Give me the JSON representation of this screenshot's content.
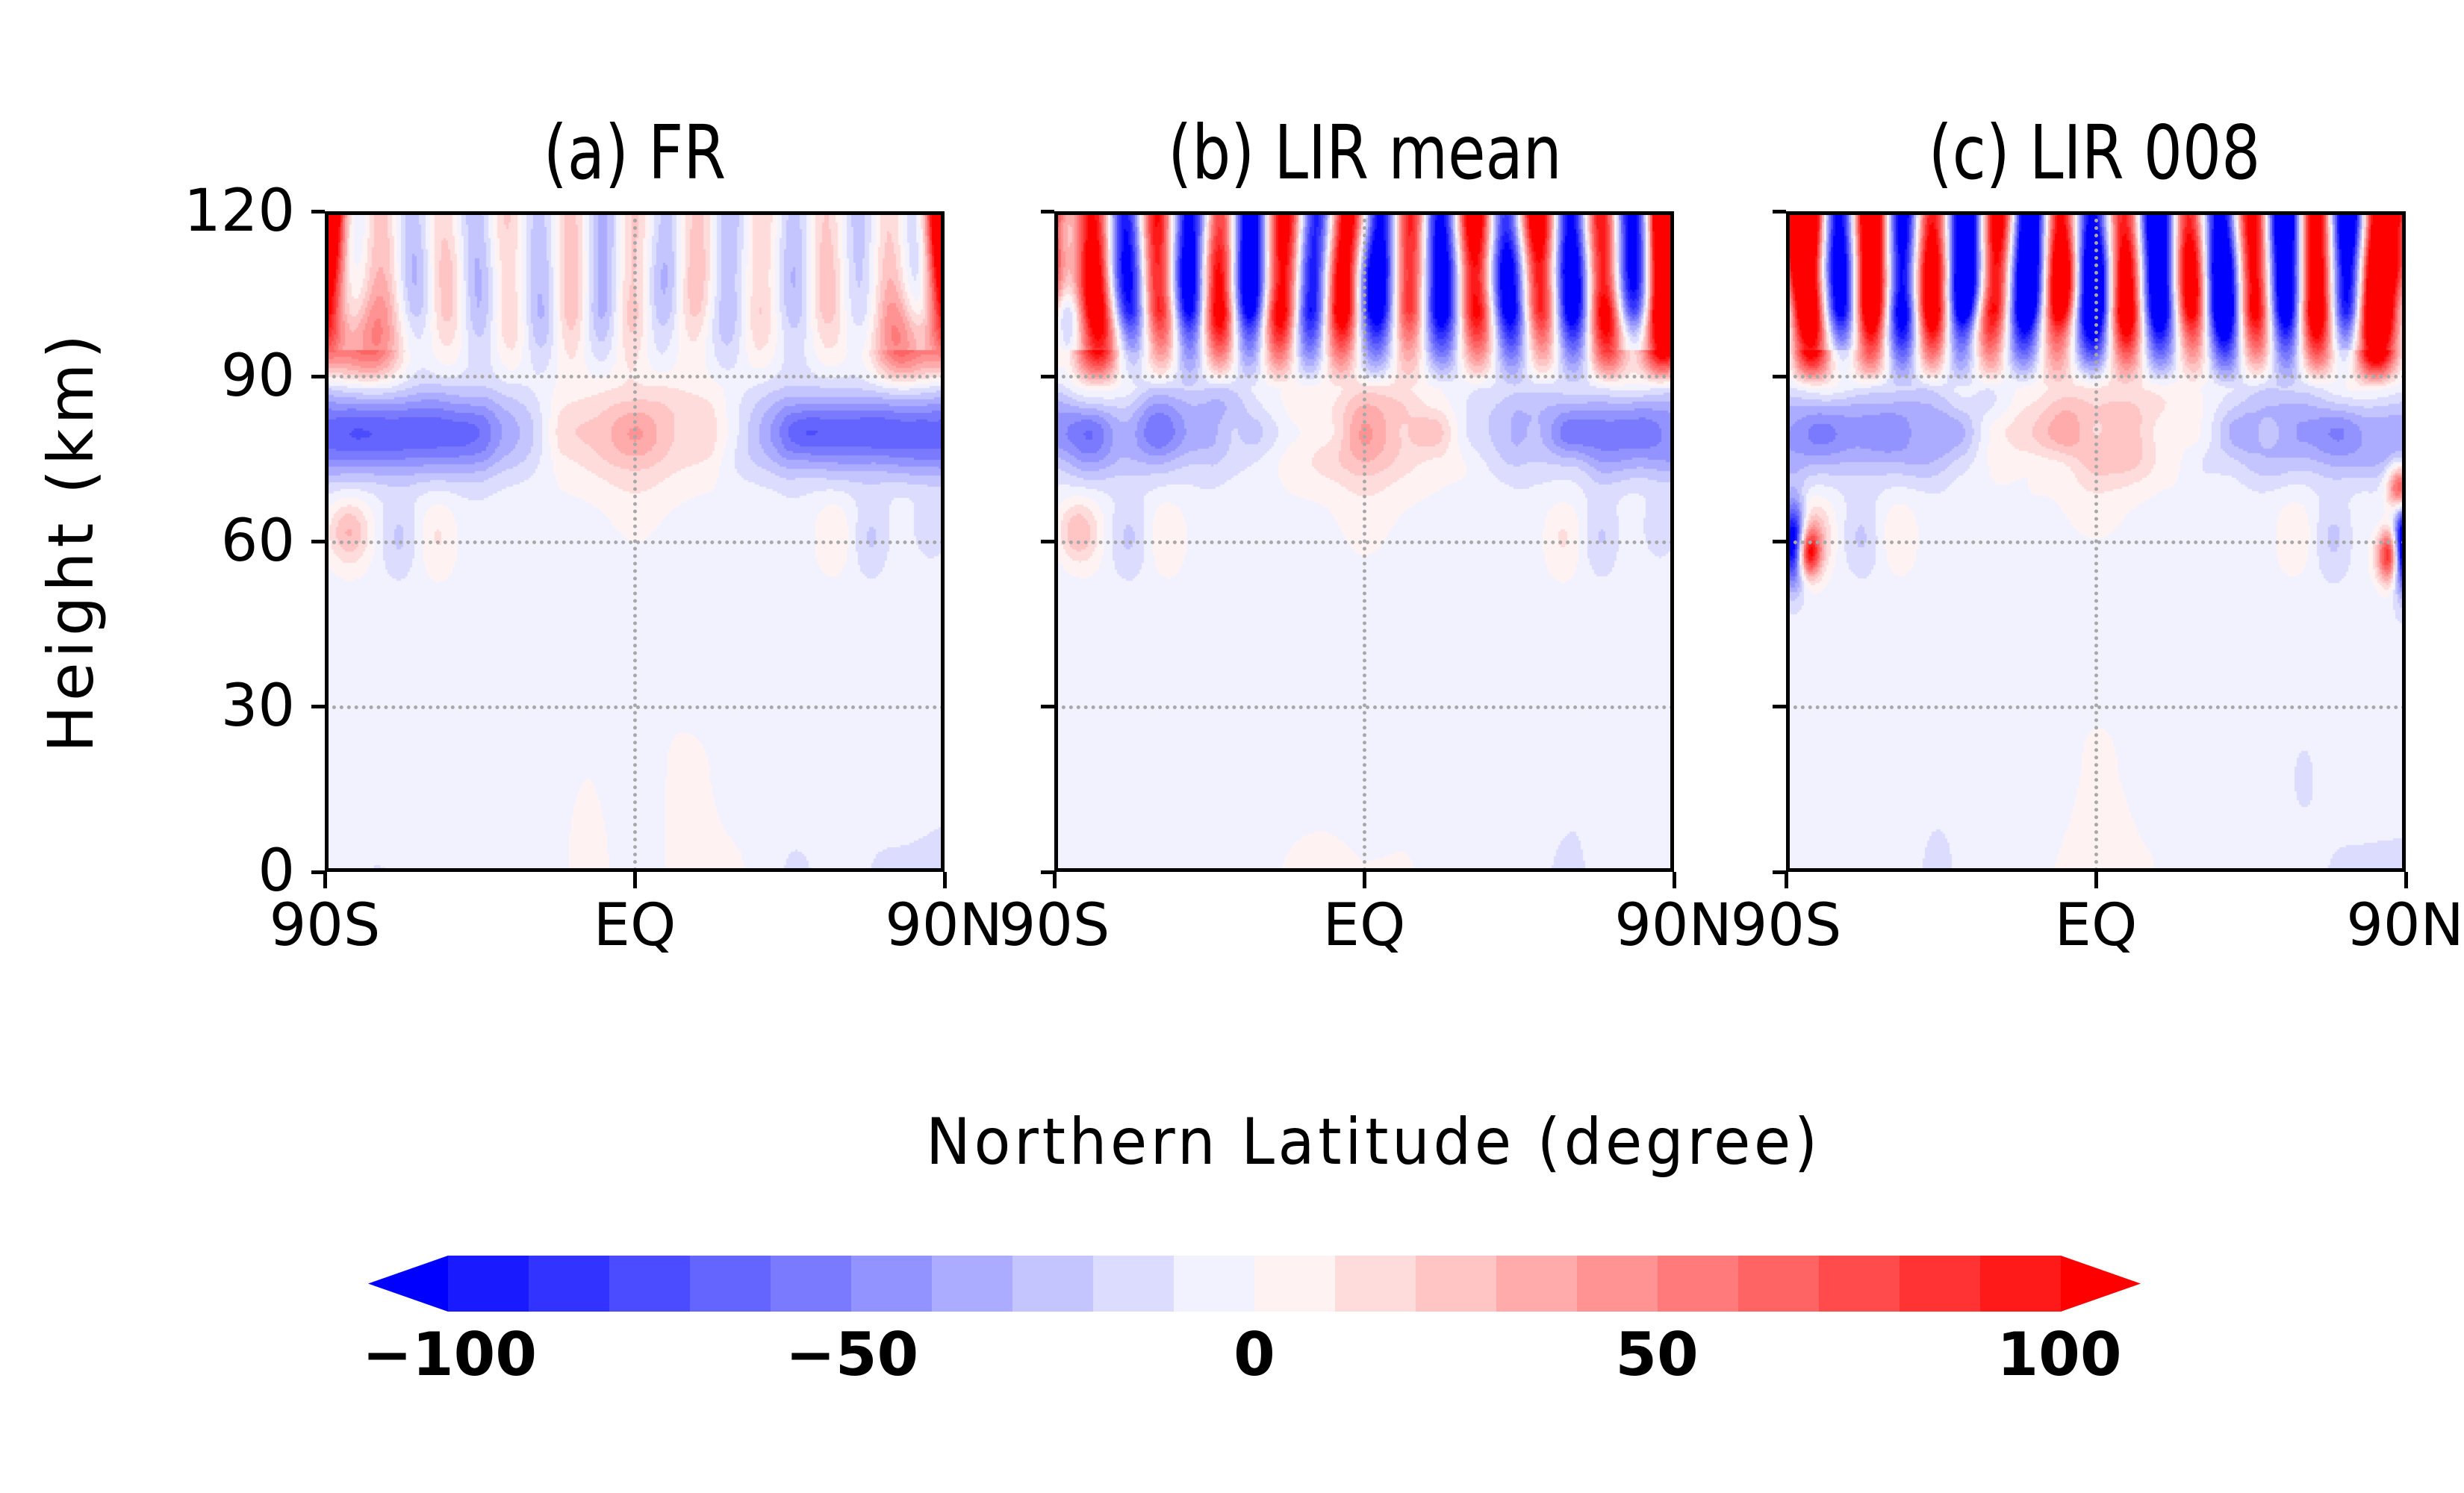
{
  "chart_data": [
    {
      "type": "heatmap",
      "title": "(a) FR",
      "xlabel": "Northern Latitude (degree)",
      "ylabel": "Height (km)",
      "xlim": [
        -90,
        90
      ],
      "ylim": [
        0,
        120
      ],
      "xticks": [
        "90S",
        "EQ",
        "90N"
      ],
      "yticks": [
        "0",
        "30",
        "60",
        "90",
        "120"
      ],
      "grid": true,
      "features": {
        "polar_upper_max": 100,
        "mesopause_band_height_km": 80,
        "mesopause_band_extratropics": -70,
        "mesopause_band_equator": 35,
        "upper_wave_amplitude": 25,
        "lower_level_amplitude": 8
      }
    },
    {
      "type": "heatmap",
      "title": "(b) LIR mean",
      "xlabel": "Northern Latitude (degree)",
      "ylabel": "Height (km)",
      "xlim": [
        -90,
        90
      ],
      "ylim": [
        0,
        120
      ],
      "xticks": [
        "90S",
        "EQ",
        "90N"
      ],
      "yticks": [
        "0",
        "30",
        "60",
        "90",
        "120"
      ],
      "grid": true,
      "features": {
        "polar_upper_max": 100,
        "mesopause_band_height_km": 80,
        "mesopause_band_extratropics": -50,
        "mesopause_band_equator": 30,
        "upper_wave_amplitude": 110,
        "lower_level_amplitude": 8
      }
    },
    {
      "type": "heatmap",
      "title": "(c) LIR 008",
      "xlabel": "Northern Latitude (degree)",
      "ylabel": "Height (km)",
      "xlim": [
        -90,
        90
      ],
      "ylim": [
        0,
        120
      ],
      "xticks": [
        "90S",
        "EQ",
        "90N"
      ],
      "yticks": [
        "0",
        "30",
        "60",
        "90",
        "120"
      ],
      "grid": true,
      "features": {
        "polar_upper_max": 100,
        "mesopause_band_height_km": 80,
        "mesopause_band_extratropics": -40,
        "mesopause_band_equator": 30,
        "upper_wave_amplitude": 130,
        "lower_level_amplitude": 10,
        "polar_60km_extremes": 110
      }
    }
  ],
  "figure": {
    "panel_titles": [
      "(a) FR",
      "(b) LIR mean",
      "(c) LIR 008"
    ],
    "ylabel": "Height (km)",
    "xlabel": "Northern Latitude (degree)",
    "yticks": [
      "120",
      "90",
      "60",
      "30",
      "0"
    ],
    "xticks": [
      "90S",
      "EQ",
      "90N"
    ]
  },
  "colorbar": {
    "min": -100,
    "max": 100,
    "step": 10,
    "extend": "both",
    "tick_labels": [
      "−100",
      "−50",
      "0",
      "50",
      "100"
    ],
    "colors": [
      "#1a1aff",
      "#3333ff",
      "#4b4bff",
      "#6464ff",
      "#7a7aff",
      "#9393ff",
      "#ababff",
      "#c4c4ff",
      "#dcdcff",
      "#f2f2ff",
      "#fff2f2",
      "#ffdcdc",
      "#ffc4c4",
      "#ffabab",
      "#ff9393",
      "#ff7a7a",
      "#ff6464",
      "#ff4b4b",
      "#ff3333",
      "#ff1a1a"
    ],
    "under_color": "#0000ff",
    "over_color": "#ff0000"
  }
}
